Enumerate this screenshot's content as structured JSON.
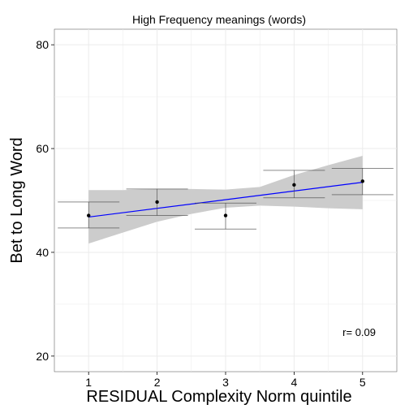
{
  "chart_data": {
    "type": "scatter",
    "title": "High Frequency meanings (words)",
    "xlabel": "RESIDUAL Complexity Norm quintile",
    "ylabel": "Bet to Long Word",
    "xlim": [
      0.5,
      5.5
    ],
    "ylim": [
      17,
      83
    ],
    "x_ticks": [
      1,
      2,
      3,
      4,
      5
    ],
    "y_ticks": [
      20,
      40,
      60,
      80
    ],
    "x_tick_labels": [
      "1",
      "2",
      "3",
      "4",
      "5"
    ],
    "y_tick_labels": [
      "20",
      "40",
      "60",
      "80"
    ],
    "grid": true,
    "points": [
      {
        "x": 1,
        "y": 47.1,
        "ymin": 44.7,
        "ymax": 49.7
      },
      {
        "x": 2,
        "y": 49.7,
        "ymin": 47.1,
        "ymax": 52.2
      },
      {
        "x": 3,
        "y": 47.1,
        "ymin": 44.5,
        "ymax": 49.5
      },
      {
        "x": 4,
        "y": 53.0,
        "ymin": 50.5,
        "ymax": 55.8
      },
      {
        "x": 5,
        "y": 53.7,
        "ymin": 51.1,
        "ymax": 56.2
      }
    ],
    "fit_line": {
      "x": [
        1,
        5
      ],
      "y": [
        46.8,
        53.5
      ]
    },
    "confidence_band": {
      "x": [
        1,
        1.5,
        2,
        2.5,
        3,
        3.5,
        4,
        4.5,
        5
      ],
      "lower": [
        41.7,
        43.8,
        45.9,
        47.4,
        48.6,
        49.0,
        48.8,
        48.5,
        48.3
      ],
      "upper": [
        52.0,
        52.0,
        52.2,
        52.2,
        52.1,
        52.6,
        54.9,
        56.8,
        58.6
      ]
    },
    "annotation": {
      "text": "r= 0.09",
      "x": 4.95,
      "y": 24.7
    },
    "colors": {
      "panel_background": "#ffffff",
      "grid": "#ebebeb",
      "points": "#000000",
      "error_bars": "#444444",
      "fit_line": "#0000ff",
      "confidence_band": "#cccccc"
    }
  }
}
